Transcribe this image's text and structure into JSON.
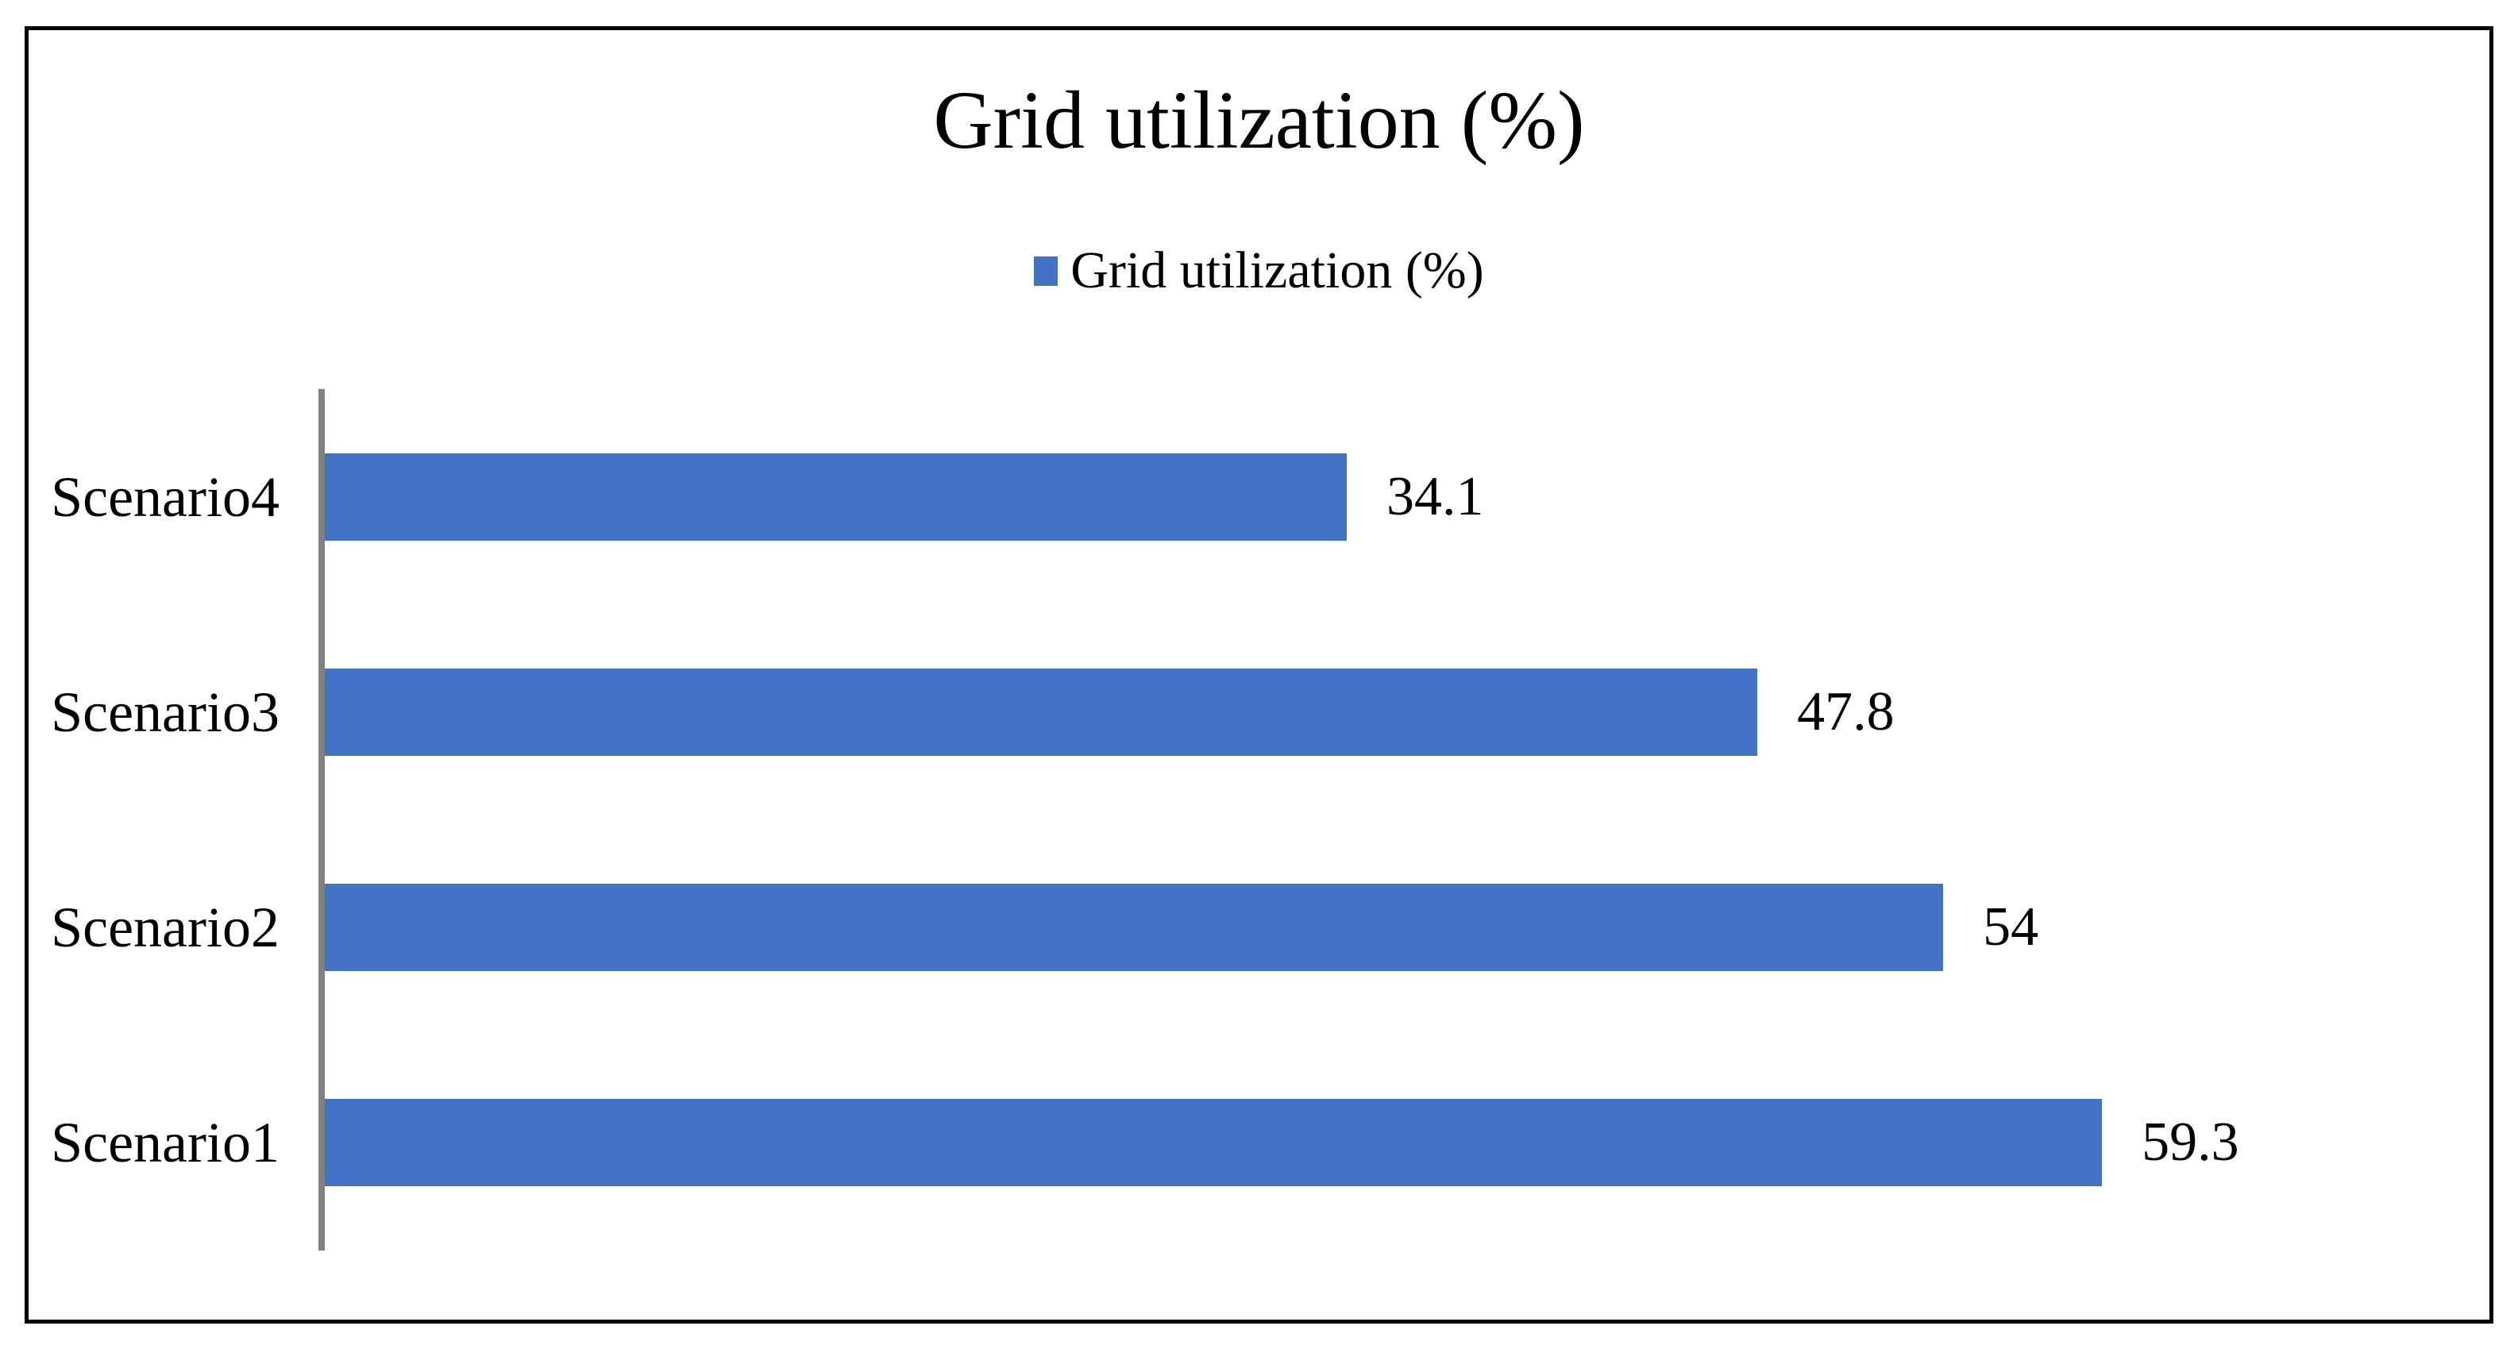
{
  "title": "Grid utilization (%)",
  "legend": {
    "label": "Grid utilization (%)",
    "swatch_color": "#4472C4"
  },
  "colors": {
    "bar": "#4472C4",
    "axis_line": "#808080",
    "border": "#000000",
    "text": "#000000",
    "background": "#ffffff"
  },
  "chart_data": {
    "type": "bar",
    "orientation": "horizontal",
    "title": "Grid utilization (%)",
    "legend_entries": [
      "Grid utilization (%)"
    ],
    "legend_position": "top",
    "categories": [
      "Scenario4",
      "Scenario3",
      "Scenario2",
      "Scenario1"
    ],
    "values": [
      34.1,
      47.8,
      54,
      59.3
    ],
    "value_labels": [
      "34.1",
      "47.8",
      "54",
      "59.3"
    ],
    "value_label_position": "outside-end",
    "xlabel": "",
    "ylabel": "",
    "xlim": [
      0,
      70
    ],
    "grid": false,
    "bar_color": "#4472C4"
  }
}
